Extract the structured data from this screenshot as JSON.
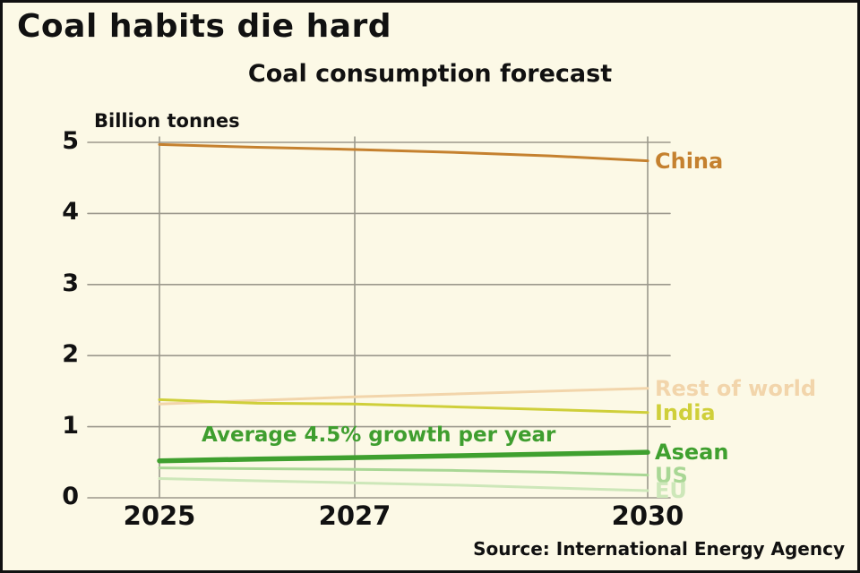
{
  "title": "Coal habits die hard",
  "subtitle": "Coal consumption forecast",
  "source": "Source: International Energy Agency",
  "annotation": {
    "text": "Average 4.5% growth per year",
    "color": "#3f9e2f"
  },
  "chart_data": {
    "type": "line",
    "title": "Coal consumption forecast",
    "xlabel": "",
    "ylabel": "Billion tonnes",
    "x": [
      2025,
      2026,
      2027,
      2028,
      2029,
      2030
    ],
    "xticks": [
      2025,
      2027,
      2030
    ],
    "yticks": [
      0,
      1,
      2,
      3,
      4,
      5
    ],
    "ylim": [
      0,
      5.2
    ],
    "grid": true,
    "grid_color": "#9b988c",
    "legend_position": "right-of-line-ends",
    "series": [
      {
        "name": "China",
        "color": "#c5812f",
        "line_width": 3,
        "values": [
          4.97,
          4.93,
          4.9,
          4.86,
          4.81,
          4.74
        ]
      },
      {
        "name": "Rest of world",
        "color": "#f2d5ab",
        "line_width": 3,
        "values": [
          1.32,
          1.37,
          1.42,
          1.46,
          1.5,
          1.54
        ]
      },
      {
        "name": "India",
        "color": "#cfcf3a",
        "line_width": 3,
        "values": [
          1.38,
          1.33,
          1.32,
          1.28,
          1.24,
          1.2
        ]
      },
      {
        "name": "Asean",
        "color": "#3fa02f",
        "line_width": 5.5,
        "values": [
          0.52,
          0.545,
          0.565,
          0.59,
          0.615,
          0.64
        ]
      },
      {
        "name": "US",
        "color": "#a9d795",
        "line_width": 3,
        "values": [
          0.42,
          0.41,
          0.4,
          0.385,
          0.36,
          0.32
        ]
      },
      {
        "name": "EU",
        "color": "#cde7b9",
        "line_width": 3,
        "values": [
          0.27,
          0.24,
          0.21,
          0.18,
          0.14,
          0.1
        ]
      }
    ]
  }
}
